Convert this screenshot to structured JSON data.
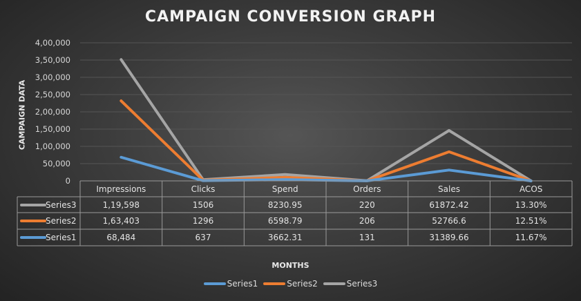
{
  "chart_data": {
    "type": "line",
    "stacked": true,
    "title": "CAMPAIGN CONVERSION GRAPH",
    "xlabel": "MONTHS",
    "ylabel": "CAMPAIGN DATA",
    "ylim": [
      0,
      400000
    ],
    "yticks": [
      "0",
      "50,000",
      "1,00,000",
      "1,50,000",
      "2,00,000",
      "2,50,000",
      "3,00,000",
      "3,50,000",
      "4,00,000"
    ],
    "ytick_values": [
      0,
      50000,
      100000,
      150000,
      200000,
      250000,
      300000,
      350000,
      400000
    ],
    "categories": [
      "Impressions",
      "Clicks",
      "Spend",
      "Orders",
      "Sales",
      "ACOS"
    ],
    "grid": true,
    "legend_position": "bottom",
    "series": [
      {
        "name": "Series1",
        "color": "#5b9bd5",
        "values": [
          68484,
          637,
          3662.31,
          131,
          31389.66,
          0.1167
        ],
        "labels": [
          "68,484",
          "637",
          "3662.31",
          "131",
          "31389.66",
          "11.67%"
        ]
      },
      {
        "name": "Series2",
        "color": "#ed7d31",
        "values": [
          163403,
          1296,
          6598.79,
          206,
          52766.6,
          0.1251
        ],
        "labels": [
          "1,63,403",
          "1296",
          "6598.79",
          "206",
          "52766.6",
          "12.51%"
        ]
      },
      {
        "name": "Series3",
        "color": "#a5a5a5",
        "values": [
          119598,
          1506,
          8230.95,
          220,
          61872.42,
          0.133
        ],
        "labels": [
          "1,19,598",
          "1506",
          "8230.95",
          "220",
          "61872.42",
          "13.30%"
        ]
      }
    ]
  }
}
